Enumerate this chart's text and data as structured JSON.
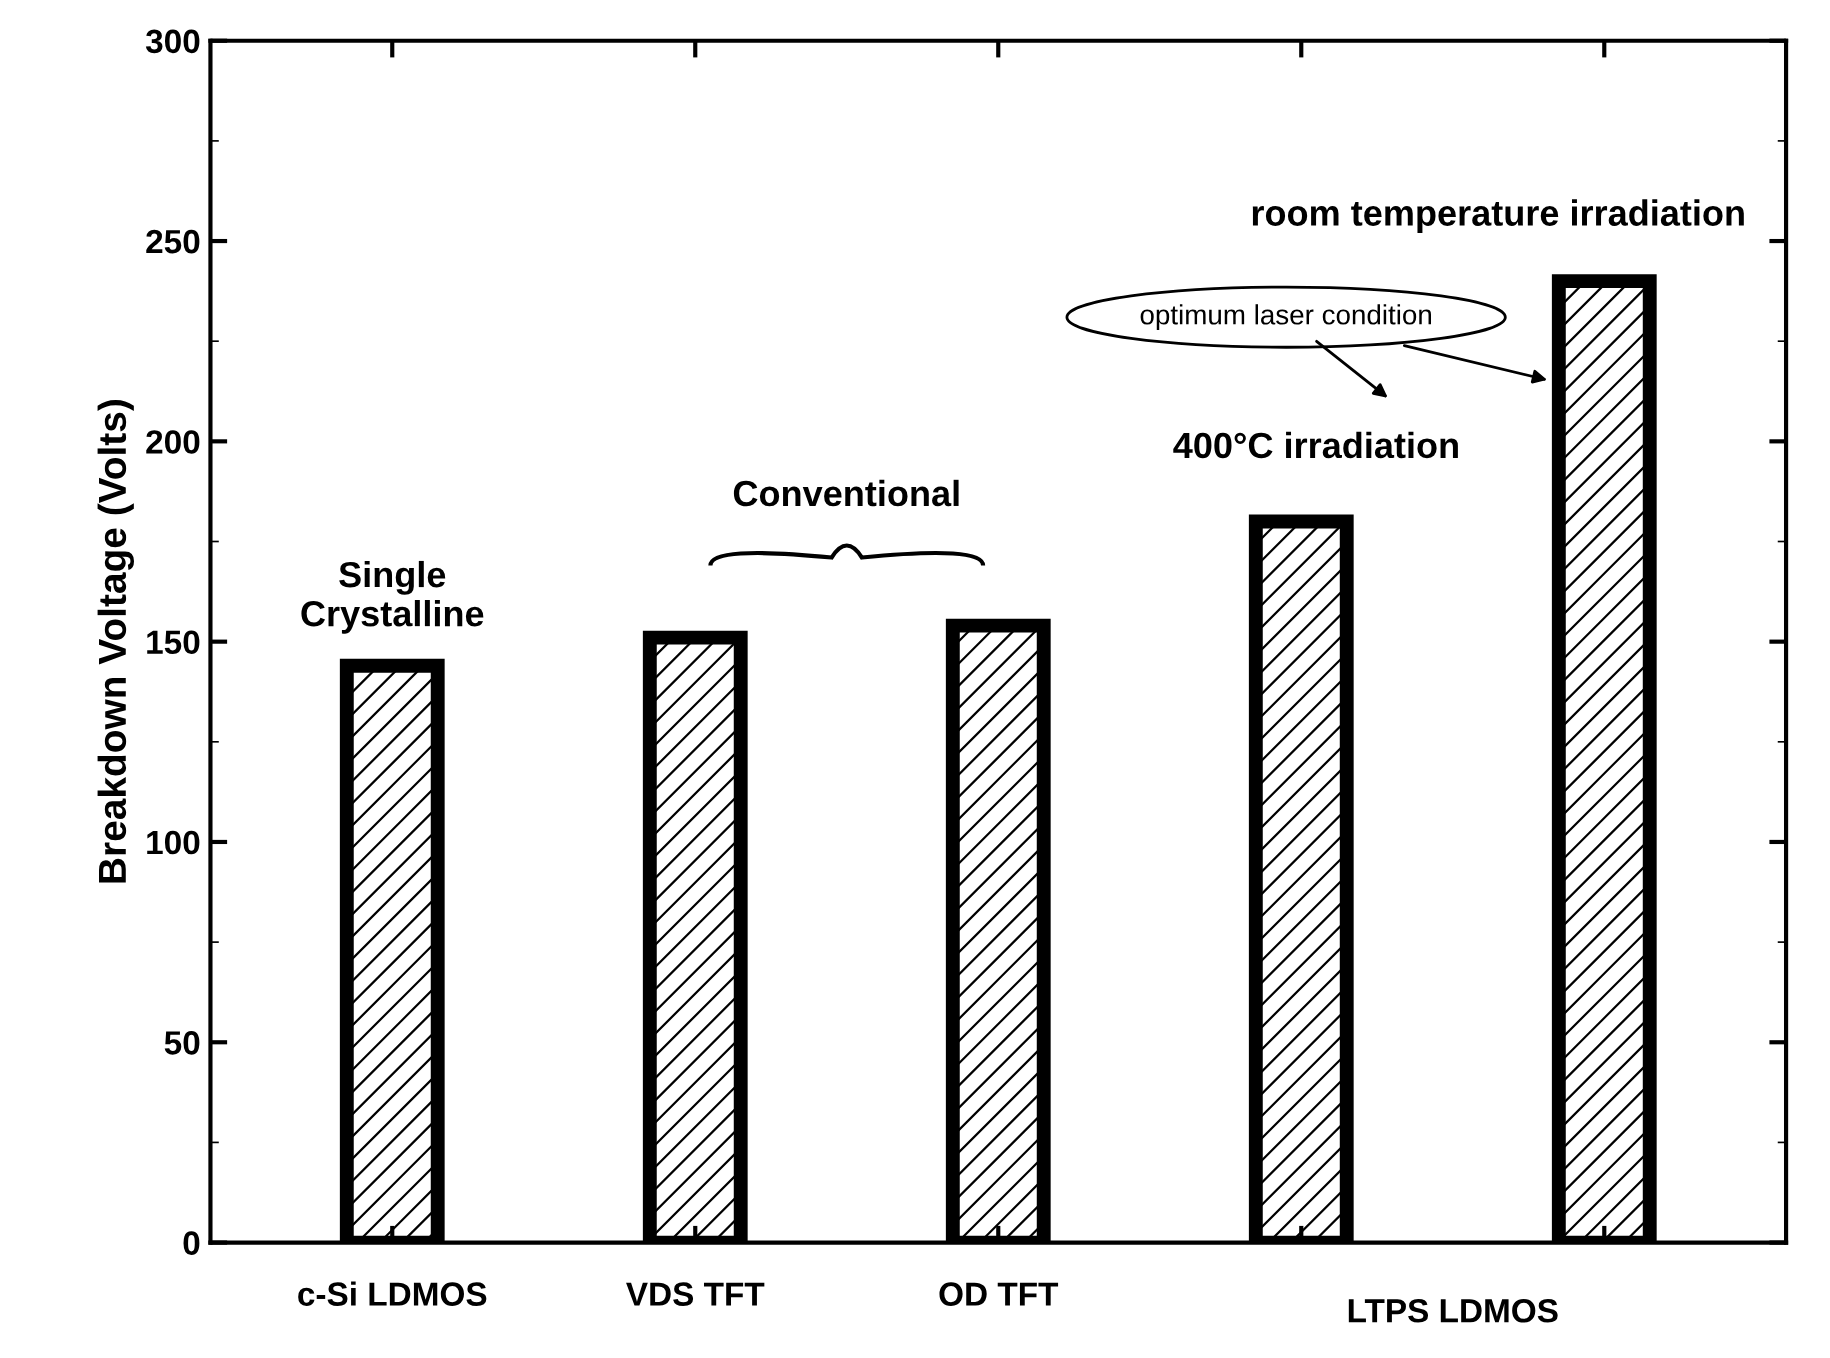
{
  "chart_data": {
    "type": "bar",
    "ylabel": "Breakdown Voltage (Volts)",
    "categories": [
      "c-Si LDMOS",
      "VDS TFT",
      "OD TFT",
      null,
      null
    ],
    "values": [
      144,
      151,
      154,
      180,
      240
    ],
    "color": "#000000",
    "ylim": [
      0,
      300
    ],
    "yticks": [
      0,
      50,
      100,
      150,
      200,
      250,
      300
    ],
    "annotations": [
      "Single\nCrystalline",
      "Conventional",
      "400°C irradiation",
      "room temperature irradiation",
      "optimum laser condition",
      "LTPS LDMOS"
    ]
  }
}
